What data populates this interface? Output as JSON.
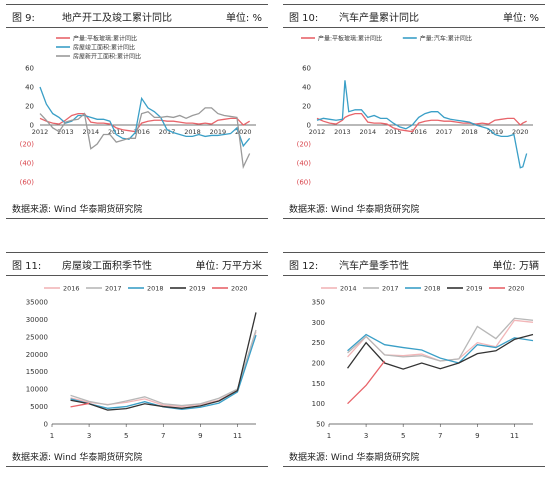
{
  "panels": [
    {
      "number": "图 9:",
      "title": "地产开工及竣工累计同比",
      "unit": "单位: %",
      "source": "数据来源: Wind  华泰期货研究院"
    },
    {
      "number": "图 10:",
      "title": "汽车产量累计同比",
      "unit": "单位: %",
      "source": "数据来源: Wind  华泰期货研究院"
    },
    {
      "number": "图 11:",
      "title": "房屋竣工面积季节性",
      "unit": "单位: 万平方米",
      "source": "数据来源: Wind  华泰期货研究院"
    },
    {
      "number": "图 12:",
      "title": "汽车产量季节性",
      "unit": "单位: 万辆",
      "source": "数据来源: Wind  华泰期货研究院"
    }
  ],
  "chart_data": [
    {
      "type": "line",
      "x": [
        2012.0,
        2012.25,
        2012.5,
        2012.75,
        2013.0,
        2013.25,
        2013.5,
        2013.75,
        2014.0,
        2014.25,
        2014.5,
        2014.75,
        2015.0,
        2015.25,
        2015.5,
        2015.75,
        2016.0,
        2016.25,
        2016.5,
        2016.75,
        2017.0,
        2017.25,
        2017.5,
        2017.75,
        2018.0,
        2018.25,
        2018.5,
        2018.75,
        2019.0,
        2019.25,
        2019.5,
        2019.75,
        2020.0,
        2020.25
      ],
      "series": [
        {
          "name": "产量:平板玻璃:累计同比",
          "color": "#e8646a",
          "values": [
            7,
            4,
            2,
            1,
            5,
            10,
            12,
            12,
            3,
            2,
            2,
            1,
            -3,
            -5,
            -6,
            -7,
            2,
            4,
            5,
            5,
            4,
            4,
            3,
            2,
            2,
            1,
            2,
            1,
            5,
            6,
            7,
            7,
            0,
            4
          ]
        },
        {
          "name": "房屋竣工面积:累计同比",
          "color": "#3a9fc7",
          "values": [
            40,
            22,
            12,
            8,
            2,
            4,
            10,
            10,
            8,
            6,
            6,
            4,
            -10,
            -14,
            -15,
            -8,
            28,
            18,
            14,
            8,
            -5,
            -8,
            -10,
            -12,
            -12,
            -10,
            -12,
            -11,
            -11,
            -10,
            -9,
            -3,
            -22,
            -14
          ]
        },
        {
          "name": "房屋新开工面积:累计同比",
          "color": "#9a9a9a",
          "values": [
            12,
            5,
            -3,
            -7,
            3,
            5,
            6,
            12,
            -25,
            -20,
            -10,
            -10,
            -18,
            -16,
            -14,
            -14,
            12,
            14,
            8,
            8,
            9,
            8,
            10,
            7,
            10,
            12,
            18,
            18,
            12,
            10,
            9,
            8,
            -44,
            -30
          ]
        }
      ],
      "xticks": [
        "2012",
        "2013",
        "2014",
        "2015",
        "2016",
        "2017",
        "2018",
        "2019",
        "2020"
      ],
      "yticks": [
        "60",
        "40",
        "20",
        "0",
        "(20)",
        "(40)",
        "(60)"
      ],
      "ylim": [
        -60,
        60
      ]
    },
    {
      "type": "line",
      "x": [
        2012.0,
        2012.25,
        2012.5,
        2012.75,
        2013.0,
        2013.1,
        2013.25,
        2013.5,
        2013.75,
        2014.0,
        2014.25,
        2014.5,
        2014.75,
        2015.0,
        2015.25,
        2015.5,
        2015.75,
        2016.0,
        2016.25,
        2016.5,
        2016.75,
        2017.0,
        2017.25,
        2017.5,
        2017.75,
        2018.0,
        2018.25,
        2018.5,
        2018.75,
        2019.0,
        2019.25,
        2019.5,
        2019.75,
        2020.0,
        2020.1,
        2020.25
      ],
      "series": [
        {
          "name": "产量:平板玻璃:累计同比",
          "color": "#e8646a",
          "values": [
            7,
            4,
            2,
            1,
            5,
            8,
            10,
            12,
            12,
            3,
            2,
            2,
            1,
            -3,
            -5,
            -6,
            -7,
            2,
            4,
            5,
            5,
            4,
            4,
            3,
            2,
            2,
            1,
            2,
            1,
            5,
            6,
            7,
            7,
            0,
            2,
            4
          ]
        },
        {
          "name": "产量:汽车:累计同比",
          "color": "#3a9fc7",
          "values": [
            5,
            7,
            6,
            5,
            6,
            47,
            14,
            16,
            16,
            8,
            10,
            7,
            7,
            2,
            -2,
            -4,
            0,
            8,
            12,
            14,
            14,
            8,
            6,
            5,
            4,
            3,
            0,
            -2,
            -4,
            -10,
            -12,
            -12,
            -10,
            -45,
            -44,
            -30
          ]
        }
      ],
      "xticks": [
        "2012",
        "2013",
        "2014",
        "2015",
        "2016",
        "2017",
        "2018",
        "2019",
        "2020"
      ],
      "yticks": [
        "60",
        "40",
        "20",
        "0",
        "(20)",
        "(40)",
        "(60)"
      ],
      "ylim": [
        -60,
        60
      ]
    },
    {
      "type": "line",
      "categories": [
        "1",
        "2",
        "3",
        "4",
        "5",
        "6",
        "7",
        "8",
        "9",
        "10",
        "11",
        "12"
      ],
      "series": [
        {
          "name": "2016",
          "color": "#f2b6b8",
          "values": [
            null,
            7500,
            6200,
            5600,
            6200,
            7200,
            5400,
            5000,
            5600,
            6800,
            9800,
            26500
          ]
        },
        {
          "name": "2017",
          "color": "#b8b8b8",
          "values": [
            null,
            8200,
            6500,
            5500,
            6600,
            7800,
            5800,
            5300,
            5800,
            7400,
            10000,
            27000
          ]
        },
        {
          "name": "2018",
          "color": "#3a9fc7",
          "values": [
            null,
            7200,
            5800,
            4500,
            5000,
            6400,
            4900,
            4200,
            4800,
            6000,
            9200,
            25500
          ]
        },
        {
          "name": "2019",
          "color": "#333333",
          "values": [
            null,
            6800,
            5800,
            4000,
            4400,
            5800,
            5000,
            4500,
            5200,
            6600,
            9600,
            32000
          ]
        },
        {
          "name": "2020",
          "color": "#e8646a",
          "values": [
            null,
            4900,
            5900,
            null,
            null,
            null,
            null,
            null,
            null,
            null,
            null,
            null
          ]
        }
      ],
      "xticks": [
        "1",
        "3",
        "5",
        "7",
        "9",
        "11"
      ],
      "yticks": [
        "35000",
        "30000",
        "25000",
        "20000",
        "15000",
        "10000",
        "5000",
        "0"
      ],
      "ylim": [
        0,
        35000
      ]
    },
    {
      "type": "line",
      "categories": [
        "1",
        "2",
        "3",
        "4",
        "5",
        "6",
        "7",
        "8",
        "9",
        "10",
        "11",
        "12"
      ],
      "series": [
        {
          "name": "2014",
          "color": "#f2b6b8",
          "values": [
            null,
            215,
            265,
            220,
            218,
            222,
            205,
            210,
            250,
            240,
            305,
            300
          ]
        },
        {
          "name": "2017",
          "color": "#b8b8b8",
          "values": [
            null,
            225,
            265,
            220,
            215,
            218,
            205,
            210,
            290,
            260,
            310,
            305
          ]
        },
        {
          "name": "2018",
          "color": "#3a9fc7",
          "values": [
            null,
            230,
            270,
            245,
            238,
            232,
            212,
            200,
            245,
            238,
            262,
            255
          ]
        },
        {
          "name": "2019",
          "color": "#333333",
          "values": [
            null,
            187,
            250,
            200,
            185,
            200,
            186,
            200,
            223,
            230,
            258,
            270
          ]
        },
        {
          "name": "2020",
          "color": "#e8646a",
          "values": [
            null,
            100,
            145,
            205,
            null,
            null,
            null,
            null,
            null,
            null,
            null,
            null
          ]
        }
      ],
      "xticks": [
        "1",
        "3",
        "5",
        "7",
        "9",
        "11"
      ],
      "yticks": [
        "350",
        "300",
        "250",
        "200",
        "150",
        "100",
        "50"
      ],
      "ylim": [
        50,
        350
      ]
    }
  ]
}
